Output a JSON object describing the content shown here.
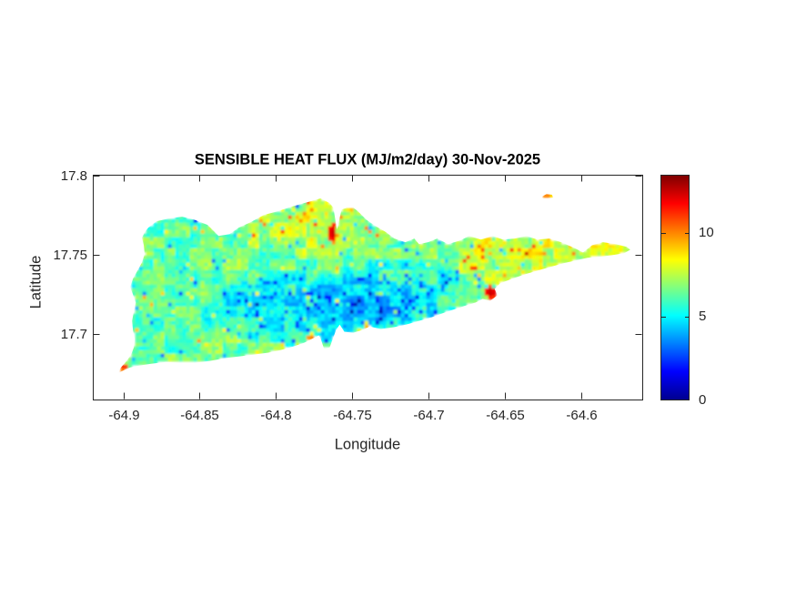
{
  "figure": {
    "title": "SENSIBLE HEAT FLUX (MJ/m2/day) 30-Nov-2025",
    "background_color": "#ffffff",
    "axis_color": "#262626",
    "title_color": "#000000"
  },
  "axes": {
    "xlabel": "Longitude",
    "ylabel": "Latitude",
    "xlim": [
      -64.92,
      -64.56
    ],
    "ylim": [
      17.659,
      17.8005
    ],
    "xticks": [
      -64.9,
      -64.85,
      -64.8,
      -64.75,
      -64.7,
      -64.65,
      -64.6
    ],
    "xtick_labels": [
      "-64.9",
      "-64.85",
      "-64.8",
      "-64.75",
      "-64.7",
      "-64.65",
      "-64.6"
    ],
    "yticks": [
      17.8,
      17.75,
      17.7
    ],
    "ytick_labels": [
      "17.8",
      "17.75",
      "17.7"
    ]
  },
  "colorbar": {
    "min": 0,
    "max": 13.5,
    "ticks": [
      0,
      5,
      10
    ],
    "tick_labels": [
      "0",
      "5",
      "10"
    ],
    "colormap": "jet",
    "stops": [
      {
        "at": 0.0,
        "color": "#000090"
      },
      {
        "at": 0.125,
        "color": "#0000ff"
      },
      {
        "at": 0.375,
        "color": "#00ffff"
      },
      {
        "at": 0.625,
        "color": "#ffff00"
      },
      {
        "at": 0.875,
        "color": "#ff0000"
      },
      {
        "at": 1.0,
        "color": "#800000"
      }
    ]
  },
  "chart_data": {
    "type": "heatmap",
    "title": "SENSIBLE HEAT FLUX (MJ/m2/day) 30-Nov-2025",
    "date": "30-Nov-2025",
    "units": "MJ/m2/day",
    "xlabel": "Longitude",
    "ylabel": "Latitude",
    "value_range": [
      0,
      13.5
    ],
    "typical_island_value": 6.4,
    "grid": false,
    "field": {
      "base": 6.4,
      "noise_amp_coarse": 0.95,
      "noise_amp_fine": 0.7,
      "low_spike": -2.3,
      "high_spike": 2.2,
      "low_spike_prob_cool": 0.1,
      "low_spike_prob": 0.03,
      "high_spike_prob_warm": 0.07,
      "high_spike_prob": 0.02,
      "regions": [
        {
          "name": "south-lowlands-cool",
          "lon": -64.772,
          "lat": 17.715,
          "rlon": 0.078,
          "rlat": 0.023,
          "delta": -1.5
        },
        {
          "name": "central-valley-cool",
          "lon": -64.724,
          "lat": 17.727,
          "rlon": 0.054,
          "rlat": 0.02,
          "delta": -1.0
        },
        {
          "name": "north-hills-warm",
          "lon": -64.772,
          "lat": 17.77,
          "rlon": 0.06,
          "rlat": 0.022,
          "delta": 1.1
        },
        {
          "name": "east-ridge-warm",
          "lon": -64.623,
          "lat": 17.753,
          "rlon": 0.066,
          "rlat": 0.026,
          "delta": 1.5
        },
        {
          "name": "east-tip-warm",
          "lon": -64.584,
          "lat": 17.756,
          "rlon": 0.024,
          "rlat": 0.009,
          "delta": 0.8
        },
        {
          "name": "west-coast-cool",
          "lon": -64.893,
          "lat": 17.705,
          "rlon": 0.02,
          "rlat": 0.02,
          "delta": -0.6
        }
      ]
    },
    "hotspots": [
      {
        "name": "salt-river-red-streak",
        "lon": -64.763,
        "lat": 17.7637,
        "rlon": 0.0022,
        "rlat": 0.0062,
        "value": 12.8
      },
      {
        "name": "southeast-coast-red-blob",
        "lon": -64.6591,
        "lat": 17.7263,
        "rlon": 0.0045,
        "rlat": 0.004,
        "value": 12.6
      },
      {
        "name": "sandy-point-hot-tip",
        "lon": -64.8997,
        "lat": 17.6792,
        "rlon": 0.0042,
        "rlat": 0.0022,
        "value": 11.5
      },
      {
        "name": "south-coast-orange",
        "lon": -64.7773,
        "lat": 17.6982,
        "rlon": 0.0028,
        "rlat": 0.0022,
        "value": 10.3
      },
      {
        "name": "south-coast-orange-2",
        "lon": -64.7403,
        "lat": 17.7056,
        "rlon": 0.002,
        "rlat": 0.0016,
        "value": 9.8
      },
      {
        "name": "north-coast-orange",
        "lon": -64.7511,
        "lat": 17.7787,
        "rlon": 0.0018,
        "rlat": 0.0016,
        "value": 10.0
      },
      {
        "name": "buck-island-warm",
        "lon": -64.6225,
        "lat": 17.787,
        "rlon": 0.004,
        "rlat": 0.0016,
        "value": 10.3
      }
    ],
    "island_outline": [
      [
        -64.8836,
        17.7672
      ],
      [
        -64.8782,
        17.7712
      ],
      [
        -64.8704,
        17.7729
      ],
      [
        -64.8615,
        17.7741
      ],
      [
        -64.8537,
        17.7723
      ],
      [
        -64.8448,
        17.7689
      ],
      [
        -64.8376,
        17.762
      ],
      [
        -64.8304,
        17.7631
      ],
      [
        -64.8245,
        17.7671
      ],
      [
        -64.8167,
        17.7706
      ],
      [
        -64.8078,
        17.7752
      ],
      [
        -64.7988,
        17.7775
      ],
      [
        -64.7899,
        17.7804
      ],
      [
        -64.7791,
        17.7833
      ],
      [
        -64.7708,
        17.7856
      ],
      [
        -64.7648,
        17.7827
      ],
      [
        -64.7624,
        17.7798
      ],
      [
        -64.76,
        17.766
      ],
      [
        -64.757,
        17.7786
      ],
      [
        -64.7534,
        17.7798
      ],
      [
        -64.7493,
        17.7798
      ],
      [
        -64.7463,
        17.7775
      ],
      [
        -64.7409,
        17.7723
      ],
      [
        -64.7349,
        17.7683
      ],
      [
        -64.7278,
        17.7643
      ],
      [
        -64.7224,
        17.7603
      ],
      [
        -64.7152,
        17.758
      ],
      [
        -64.7093,
        17.7603
      ],
      [
        -64.7063,
        17.7568
      ],
      [
        -64.7003,
        17.758
      ],
      [
        -64.6943,
        17.7603
      ],
      [
        -64.6872,
        17.7568
      ],
      [
        -64.6794,
        17.7591
      ],
      [
        -64.6734,
        17.762
      ],
      [
        -64.6657,
        17.7597
      ],
      [
        -64.6579,
        17.762
      ],
      [
        -64.6513,
        17.7597
      ],
      [
        -64.6436,
        17.7603
      ],
      [
        -64.6358,
        17.762
      ],
      [
        -64.6287,
        17.7597
      ],
      [
        -64.6209,
        17.7603
      ],
      [
        -64.6131,
        17.758
      ],
      [
        -64.6048,
        17.7545
      ],
      [
        -64.5988,
        17.7516
      ],
      [
        -64.5928,
        17.7562
      ],
      [
        -64.5857,
        17.758
      ],
      [
        -64.5773,
        17.7568
      ],
      [
        -64.5702,
        17.7551
      ],
      [
        -64.5678,
        17.7533
      ],
      [
        -64.5719,
        17.7511
      ],
      [
        -64.5797,
        17.7499
      ],
      [
        -64.5881,
        17.7488
      ],
      [
        -64.5958,
        17.7482
      ],
      [
        -64.6036,
        17.7465
      ],
      [
        -64.6119,
        17.7447
      ],
      [
        -64.6203,
        17.7424
      ],
      [
        -64.6287,
        17.7401
      ],
      [
        -64.637,
        17.7378
      ],
      [
        -64.6454,
        17.735
      ],
      [
        -64.6531,
        17.7321
      ],
      [
        -64.6567,
        17.7286
      ],
      [
        -64.6549,
        17.7246
      ],
      [
        -64.6597,
        17.7211
      ],
      [
        -64.6645,
        17.7223
      ],
      [
        -64.6693,
        17.72
      ],
      [
        -64.6752,
        17.7183
      ],
      [
        -64.6824,
        17.716
      ],
      [
        -64.6896,
        17.7137
      ],
      [
        -64.6979,
        17.7108
      ],
      [
        -64.7063,
        17.7085
      ],
      [
        -64.7146,
        17.7062
      ],
      [
        -64.723,
        17.7045
      ],
      [
        -64.7313,
        17.7033
      ],
      [
        -64.7385,
        17.705
      ],
      [
        -64.7433,
        17.7028
      ],
      [
        -64.7493,
        17.701
      ],
      [
        -64.7552,
        17.7016
      ],
      [
        -64.7582,
        17.7062
      ],
      [
        -64.7606,
        17.7028
      ],
      [
        -64.7648,
        17.6918
      ],
      [
        -64.7684,
        17.6907
      ],
      [
        -64.7708,
        17.6976
      ],
      [
        -64.7719,
        17.6993
      ],
      [
        -64.7767,
        17.697
      ],
      [
        -64.7815,
        17.6947
      ],
      [
        -64.7887,
        17.6924
      ],
      [
        -64.797,
        17.6901
      ],
      [
        -64.8054,
        17.6884
      ],
      [
        -64.8149,
        17.6872
      ],
      [
        -64.8245,
        17.6861
      ],
      [
        -64.834,
        17.6849
      ],
      [
        -64.8436,
        17.6832
      ],
      [
        -64.8531,
        17.6821
      ],
      [
        -64.8627,
        17.6821
      ],
      [
        -64.8722,
        17.6826
      ],
      [
        -64.8818,
        17.6815
      ],
      [
        -64.8901,
        17.6803
      ],
      [
        -64.8955,
        17.6792
      ],
      [
        -64.9009,
        17.6769
      ],
      [
        -64.9039,
        17.6752
      ],
      [
        -64.9015,
        17.6792
      ],
      [
        -64.8979,
        17.6832
      ],
      [
        -64.8949,
        17.6872
      ],
      [
        -64.8931,
        17.6918
      ],
      [
        -64.8925,
        17.697
      ],
      [
        -64.8937,
        17.7028
      ],
      [
        -64.8943,
        17.7085
      ],
      [
        -64.8931,
        17.7143
      ],
      [
        -64.8919,
        17.72
      ],
      [
        -64.8937,
        17.7252
      ],
      [
        -64.8955,
        17.7298
      ],
      [
        -64.8937,
        17.735
      ],
      [
        -64.8907,
        17.7401
      ],
      [
        -64.8878,
        17.7453
      ],
      [
        -64.886,
        17.7505
      ],
      [
        -64.8866,
        17.7562
      ],
      [
        -64.8878,
        17.7608
      ],
      [
        -64.886,
        17.7643
      ]
    ],
    "buck_island_outline": [
      [
        -64.6257,
        17.7867
      ],
      [
        -64.6227,
        17.7884
      ],
      [
        -64.6191,
        17.7879
      ],
      [
        -64.6185,
        17.7861
      ],
      [
        -64.6221,
        17.7856
      ],
      [
        -64.6251,
        17.7856
      ]
    ]
  }
}
